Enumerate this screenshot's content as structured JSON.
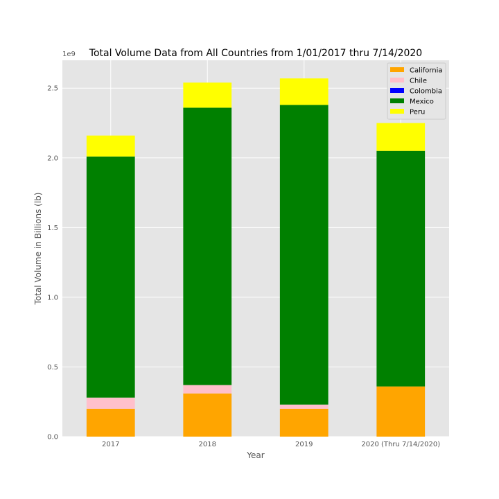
{
  "chart_data": {
    "type": "bar",
    "stacked": true,
    "title": "Total Volume Data from All Countries from 1/01/2017 thru 7/14/2020",
    "xlabel": "Year",
    "ylabel": "Total Volume in Billions (lb)",
    "y_offset_label": "1e9",
    "ylim": [
      0,
      2.7
    ],
    "yticks": [
      "0.0",
      "0.5",
      "1.0",
      "1.5",
      "2.0",
      "2.5"
    ],
    "ytick_values": [
      0,
      0.5,
      1.0,
      1.5,
      2.0,
      2.5
    ],
    "categories": [
      "2017",
      "2018",
      "2019",
      "2020 (Thru 7/14/2020)"
    ],
    "series": [
      {
        "name": "California",
        "color": "#ffa500",
        "values": [
          0.2,
          0.31,
          0.2,
          0.36
        ]
      },
      {
        "name": "Chile",
        "color": "#ffc0cb",
        "values": [
          0.08,
          0.06,
          0.03,
          0.0
        ]
      },
      {
        "name": "Colombia",
        "color": "#0000ff",
        "values": [
          0.0,
          0.0,
          0.0,
          0.0
        ]
      },
      {
        "name": "Mexico",
        "color": "#008000",
        "values": [
          1.73,
          1.99,
          2.15,
          1.69
        ]
      },
      {
        "name": "Peru",
        "color": "#ffff00",
        "values": [
          0.15,
          0.18,
          0.19,
          0.2
        ]
      }
    ],
    "grid": true,
    "legend_position": "top-right",
    "background_color": "#e5e5e5"
  }
}
